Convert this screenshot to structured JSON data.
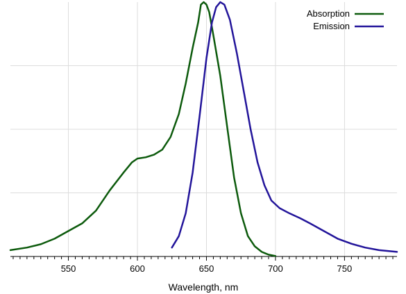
{
  "chart_data": {
    "type": "line",
    "title": "",
    "xlabel": "Wavelength, nm",
    "ylabel": "",
    "xlim": [
      508,
      788
    ],
    "ylim": [
      0,
      1.0
    ],
    "x_ticks": [
      550,
      600,
      650,
      700,
      750
    ],
    "x_minor_tick_step": 5,
    "grid": true,
    "legend_position": "top-right",
    "series": [
      {
        "name": "Absorption",
        "color": "#0c5a0c",
        "points": [
          [
            508,
            0.025
          ],
          [
            520,
            0.035
          ],
          [
            530,
            0.048
          ],
          [
            540,
            0.07
          ],
          [
            550,
            0.1
          ],
          [
            560,
            0.13
          ],
          [
            570,
            0.18
          ],
          [
            580,
            0.26
          ],
          [
            590,
            0.33
          ],
          [
            596,
            0.37
          ],
          [
            600,
            0.385
          ],
          [
            606,
            0.39
          ],
          [
            612,
            0.4
          ],
          [
            618,
            0.42
          ],
          [
            624,
            0.47
          ],
          [
            630,
            0.56
          ],
          [
            635,
            0.68
          ],
          [
            640,
            0.82
          ],
          [
            644,
            0.92
          ],
          [
            646,
            0.99
          ],
          [
            648,
            1.0
          ],
          [
            650,
            0.99
          ],
          [
            652,
            0.96
          ],
          [
            655,
            0.87
          ],
          [
            660,
            0.71
          ],
          [
            665,
            0.51
          ],
          [
            670,
            0.31
          ],
          [
            675,
            0.17
          ],
          [
            680,
            0.08
          ],
          [
            685,
            0.04
          ],
          [
            690,
            0.018
          ],
          [
            695,
            0.007
          ],
          [
            700,
            0.002
          ]
        ]
      },
      {
        "name": "Emission",
        "color": "#22149a",
        "points": [
          [
            625,
            0.035
          ],
          [
            630,
            0.08
          ],
          [
            635,
            0.17
          ],
          [
            640,
            0.33
          ],
          [
            645,
            0.55
          ],
          [
            650,
            0.78
          ],
          [
            654,
            0.92
          ],
          [
            657,
            0.98
          ],
          [
            660,
            1.0
          ],
          [
            663,
            0.99
          ],
          [
            667,
            0.93
          ],
          [
            672,
            0.8
          ],
          [
            677,
            0.65
          ],
          [
            682,
            0.5
          ],
          [
            687,
            0.37
          ],
          [
            692,
            0.28
          ],
          [
            697,
            0.22
          ],
          [
            703,
            0.19
          ],
          [
            710,
            0.17
          ],
          [
            718,
            0.15
          ],
          [
            725,
            0.13
          ],
          [
            735,
            0.1
          ],
          [
            745,
            0.07
          ],
          [
            755,
            0.05
          ],
          [
            765,
            0.035
          ],
          [
            775,
            0.025
          ],
          [
            788,
            0.018
          ]
        ]
      }
    ]
  }
}
